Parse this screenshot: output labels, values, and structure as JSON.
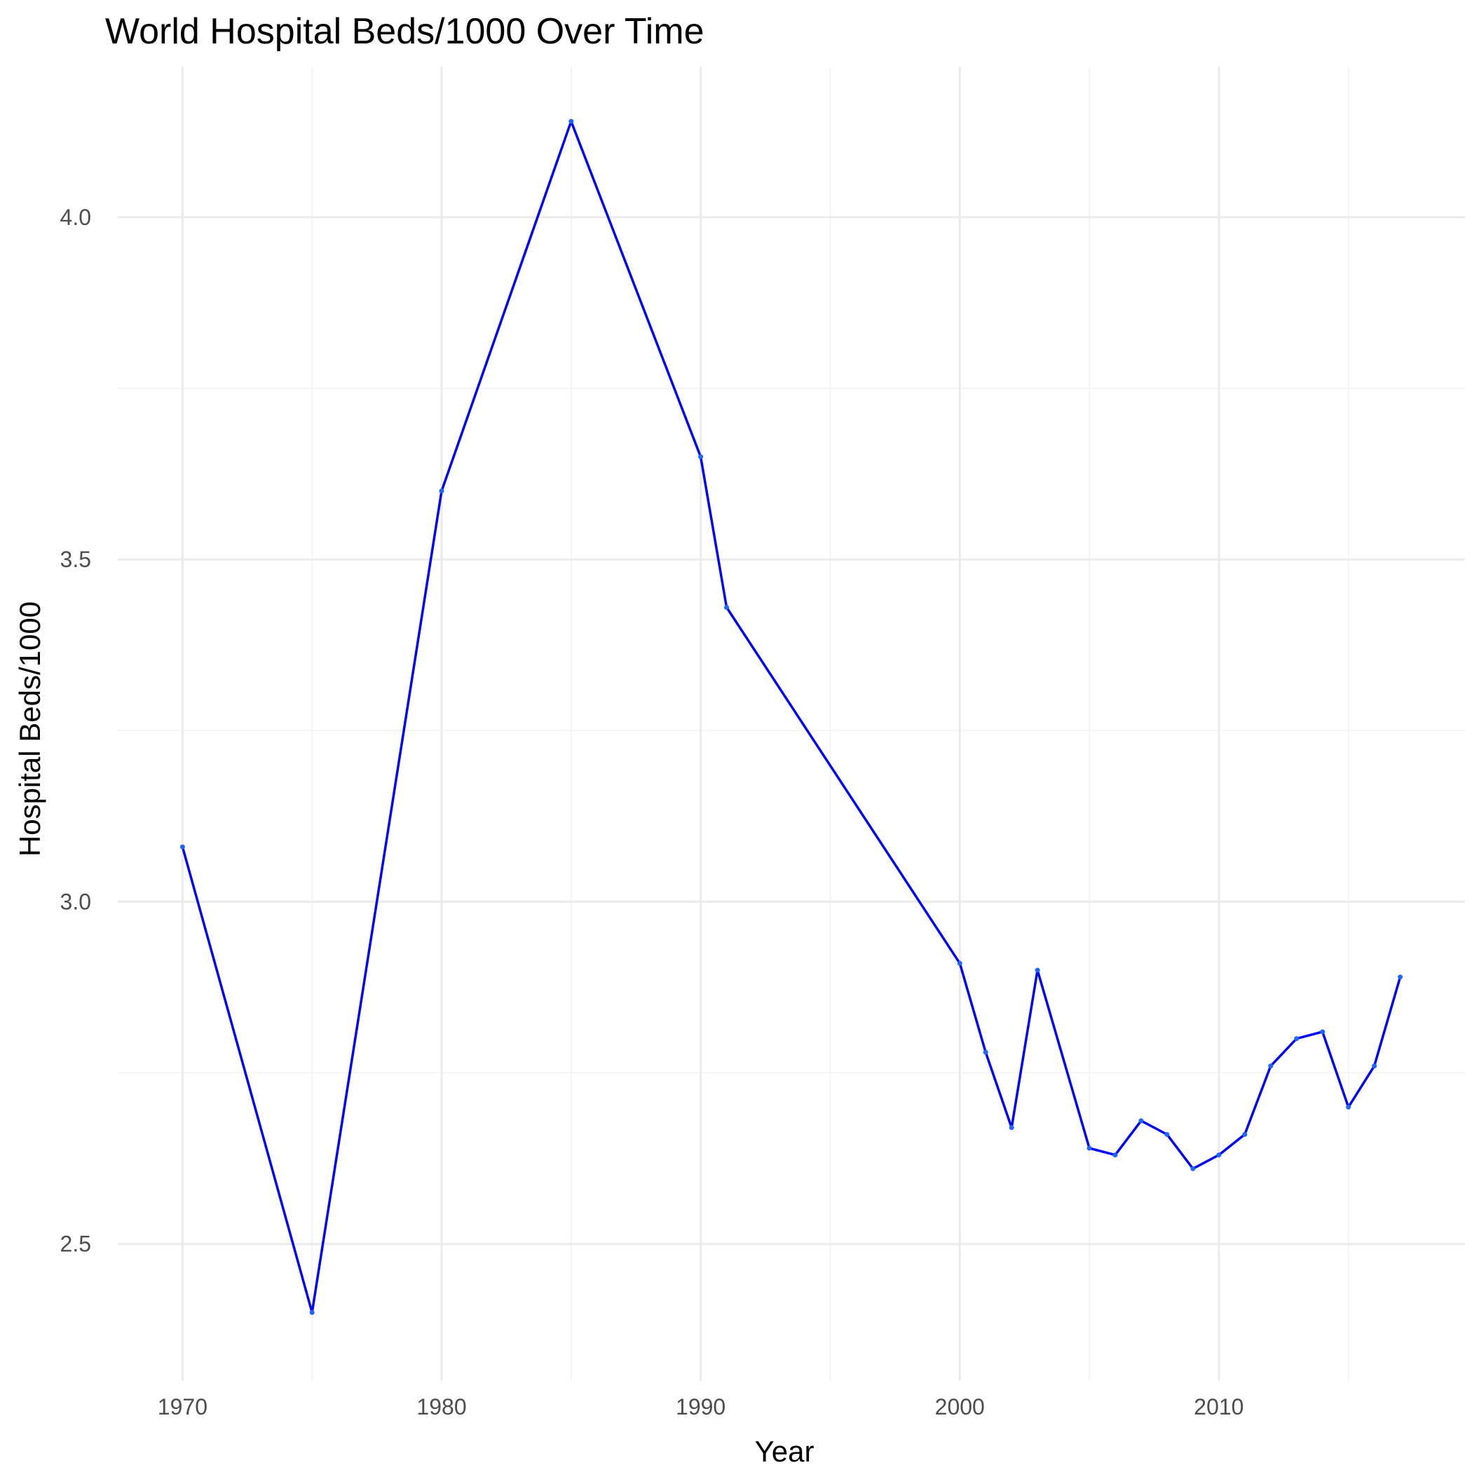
{
  "chart_data": {
    "type": "line",
    "title": "World Hospital Beds/1000 Over Time",
    "xlabel": "Year",
    "ylabel": "Hospital Beds/1000",
    "xlim": [
      1967.5,
      2019.5
    ],
    "ylim": [
      2.3,
      4.22
    ],
    "x_ticks": [
      1970,
      1980,
      1990,
      2000,
      2010
    ],
    "y_ticks": [
      2.5,
      3.0,
      3.5,
      4.0
    ],
    "y_tick_labels": [
      "2.5",
      "3.0",
      "3.5",
      "4.0"
    ],
    "grid": true,
    "legend": "none",
    "colors": {
      "line": "#0000ff",
      "points": "#1e66ff",
      "grid": "#ebebeb"
    },
    "series": [
      {
        "x": [
          1970,
          1975,
          1980,
          1985,
          1990,
          1991,
          2000,
          2001,
          2002,
          2003,
          2005,
          2006,
          2007,
          2008,
          2009,
          2010,
          2011,
          2012,
          2013,
          2014,
          2015,
          2016,
          2017
        ],
        "y": [
          3.08,
          2.4,
          3.6,
          4.14,
          3.65,
          3.43,
          2.91,
          2.78,
          2.67,
          2.9,
          2.64,
          2.63,
          2.68,
          2.66,
          2.61,
          2.63,
          2.66,
          2.76,
          2.8,
          2.81,
          2.7,
          2.76,
          2.89
        ]
      }
    ]
  }
}
